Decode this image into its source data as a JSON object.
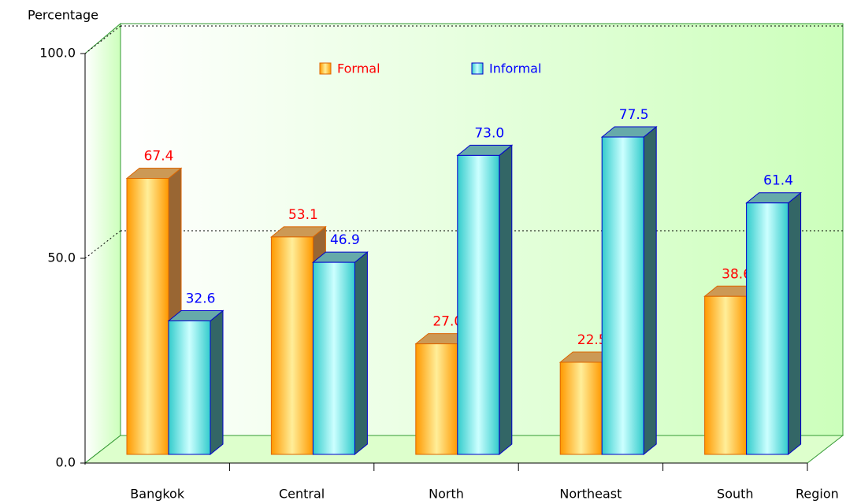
{
  "chart_data": {
    "type": "bar3d",
    "y_label": "Percentage",
    "x_label": "Region",
    "categories": [
      "Bangkok",
      "Central",
      "North",
      "Northeast",
      "South"
    ],
    "series": [
      {
        "name": "Formal",
        "color": "#ff9900",
        "label_color": "#ff0000",
        "values": [
          67.4,
          53.1,
          27.0,
          22.5,
          38.6
        ],
        "value_labels": [
          "67.4",
          "53.1",
          "27.0",
          "22.5",
          "38.6"
        ]
      },
      {
        "name": "Informal",
        "color": "#33cccc",
        "label_color": "#0000ff",
        "values": [
          32.6,
          46.9,
          73.0,
          77.5,
          61.4
        ],
        "value_labels": [
          "32.6",
          "46.9",
          "73.0",
          "77.5",
          "61.4"
        ]
      }
    ],
    "ylim": [
      0,
      100
    ],
    "yticks": [
      {
        "value": 0,
        "label": "0.0"
      },
      {
        "value": 50,
        "label": "50.0"
      },
      {
        "value": 100,
        "label": "100.0"
      }
    ],
    "grid": true
  }
}
